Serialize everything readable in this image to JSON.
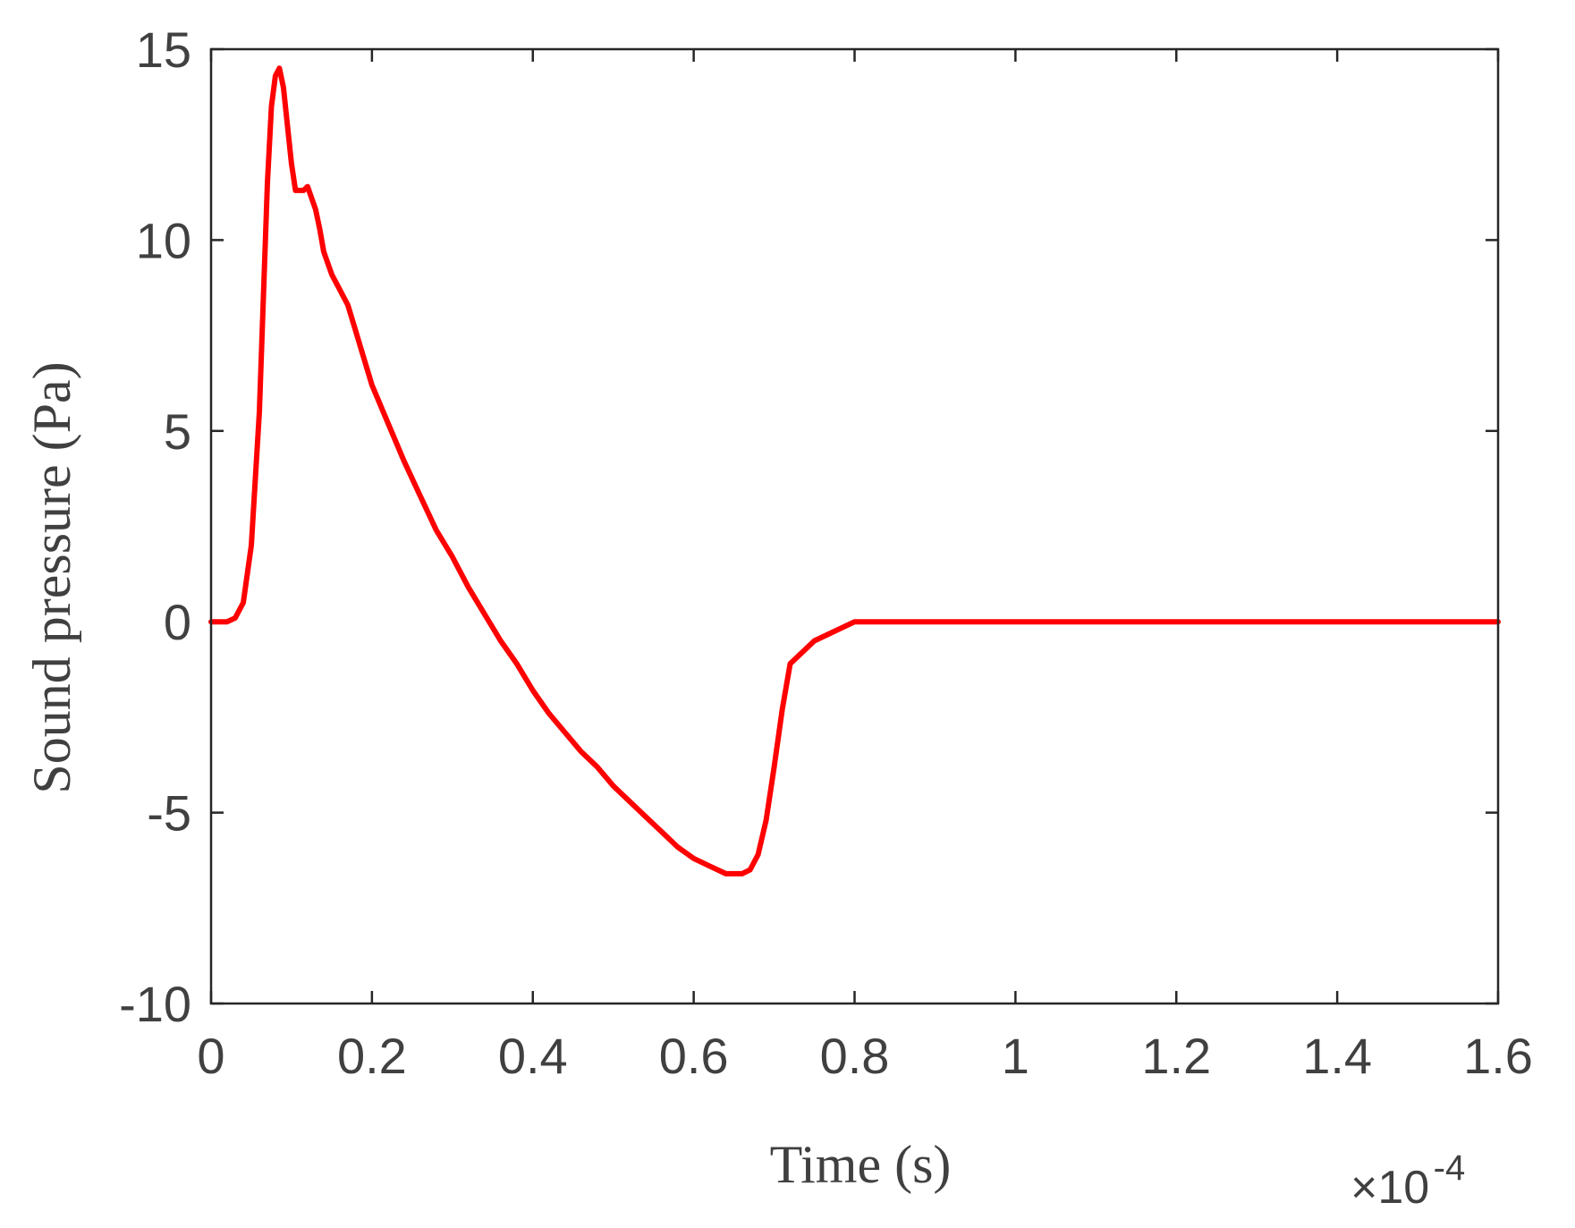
{
  "chart_data": {
    "type": "line",
    "title": "",
    "xlabel": "Time (s)",
    "ylabel": "Sound pressure (Pa)",
    "x_exponent_label": {
      "base": "×10",
      "exponent": "-4"
    },
    "xlim": [
      0,
      1.6
    ],
    "ylim": [
      -10,
      15
    ],
    "x_ticks": [
      0,
      0.2,
      0.4,
      0.6,
      0.8,
      1,
      1.2,
      1.4,
      1.6
    ],
    "x_tick_labels": [
      "0",
      "0.2",
      "0.4",
      "0.6",
      "0.8",
      "1",
      "1.2",
      "1.4",
      "1.6"
    ],
    "y_ticks": [
      -10,
      -5,
      0,
      5,
      10,
      15
    ],
    "y_tick_labels": [
      "-10",
      "-5",
      "0",
      "5",
      "10",
      "15"
    ],
    "grid": false,
    "box": true,
    "series": [
      {
        "color": "#ff0000",
        "x": [
          0,
          0.02,
          0.03,
          0.04,
          0.05,
          0.06,
          0.065,
          0.07,
          0.075,
          0.08,
          0.085,
          0.09,
          0.095,
          0.1,
          0.105,
          0.11,
          0.115,
          0.12,
          0.13,
          0.135,
          0.14,
          0.15,
          0.16,
          0.17,
          0.18,
          0.19,
          0.2,
          0.22,
          0.24,
          0.26,
          0.28,
          0.3,
          0.32,
          0.34,
          0.36,
          0.38,
          0.4,
          0.42,
          0.44,
          0.46,
          0.48,
          0.5,
          0.52,
          0.54,
          0.56,
          0.58,
          0.6,
          0.62,
          0.64,
          0.66,
          0.67,
          0.68,
          0.69,
          0.7,
          0.71,
          0.72,
          0.73,
          0.74,
          0.75,
          0.8,
          0.85,
          1.0,
          1.2,
          1.4,
          1.6
        ],
        "y": [
          0,
          0,
          0.1,
          0.5,
          2.0,
          5.5,
          8.5,
          11.5,
          13.5,
          14.3,
          14.5,
          14.0,
          13.0,
          12.0,
          11.3,
          11.3,
          11.3,
          11.4,
          10.8,
          10.3,
          9.7,
          9.1,
          8.7,
          8.3,
          7.6,
          6.9,
          6.2,
          5.2,
          4.2,
          3.3,
          2.4,
          1.7,
          0.9,
          0.2,
          -0.5,
          -1.1,
          -1.8,
          -2.4,
          -2.9,
          -3.4,
          -3.8,
          -4.3,
          -4.7,
          -5.1,
          -5.5,
          -5.9,
          -6.2,
          -6.4,
          -6.6,
          -6.6,
          -6.5,
          -6.1,
          -5.2,
          -3.8,
          -2.3,
          -1.1,
          -0.9,
          -0.7,
          -0.5,
          0,
          0,
          0,
          0,
          0,
          0
        ]
      }
    ]
  }
}
